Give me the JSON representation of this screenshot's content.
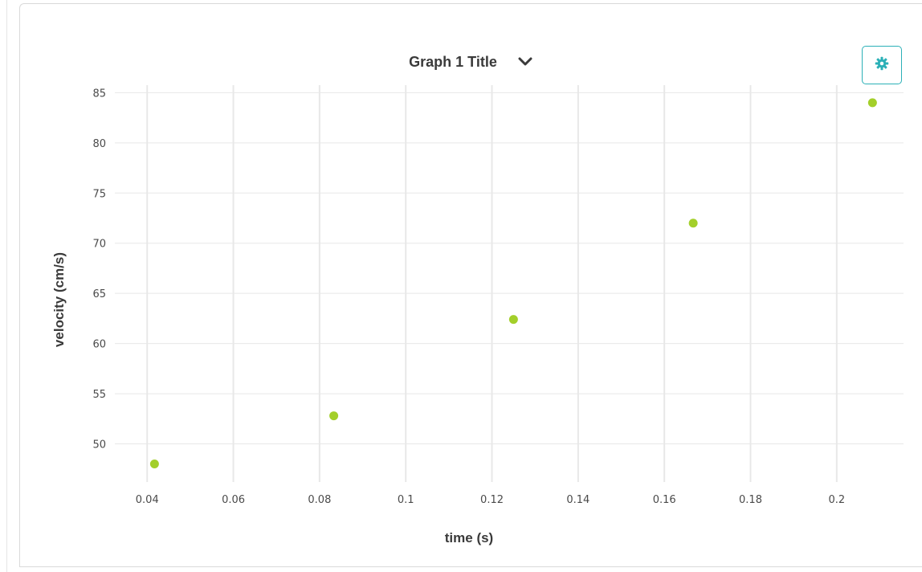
{
  "graph": {
    "title": "Graph 1 Title",
    "dropdown_icon": "chevron-down-icon",
    "settings_icon": "gear-icon"
  },
  "colors": {
    "accent": "#2bb0b7",
    "point": "#a3cf2a",
    "grid": "#e8e8e8"
  },
  "chart_data": {
    "type": "scatter",
    "title": "Graph 1 Title",
    "xlabel": "time (s)",
    "ylabel": "velocity (cm/s)",
    "xlim": [
      0.0325,
      0.2155
    ],
    "ylim": [
      46.2,
      85.75
    ],
    "x_ticks": [
      0.04,
      0.06,
      0.08,
      0.1,
      0.12,
      0.14,
      0.16,
      0.18,
      0.2
    ],
    "x_tick_labels": [
      "0.04",
      "0.06",
      "0.08",
      "0.1",
      "0.12",
      "0.14",
      "0.16",
      "0.18",
      "0.2"
    ],
    "y_ticks": [
      50,
      55,
      60,
      65,
      70,
      75,
      80,
      85
    ],
    "y_tick_labels": [
      "50",
      "55",
      "60",
      "65",
      "70",
      "75",
      "80",
      "85"
    ],
    "grid": true,
    "series": [
      {
        "x": [
          0.0417,
          0.0833,
          0.125,
          0.1667,
          0.2083
        ],
        "y": [
          48.0,
          52.8,
          62.4,
          72.0,
          84.0
        ]
      }
    ]
  }
}
